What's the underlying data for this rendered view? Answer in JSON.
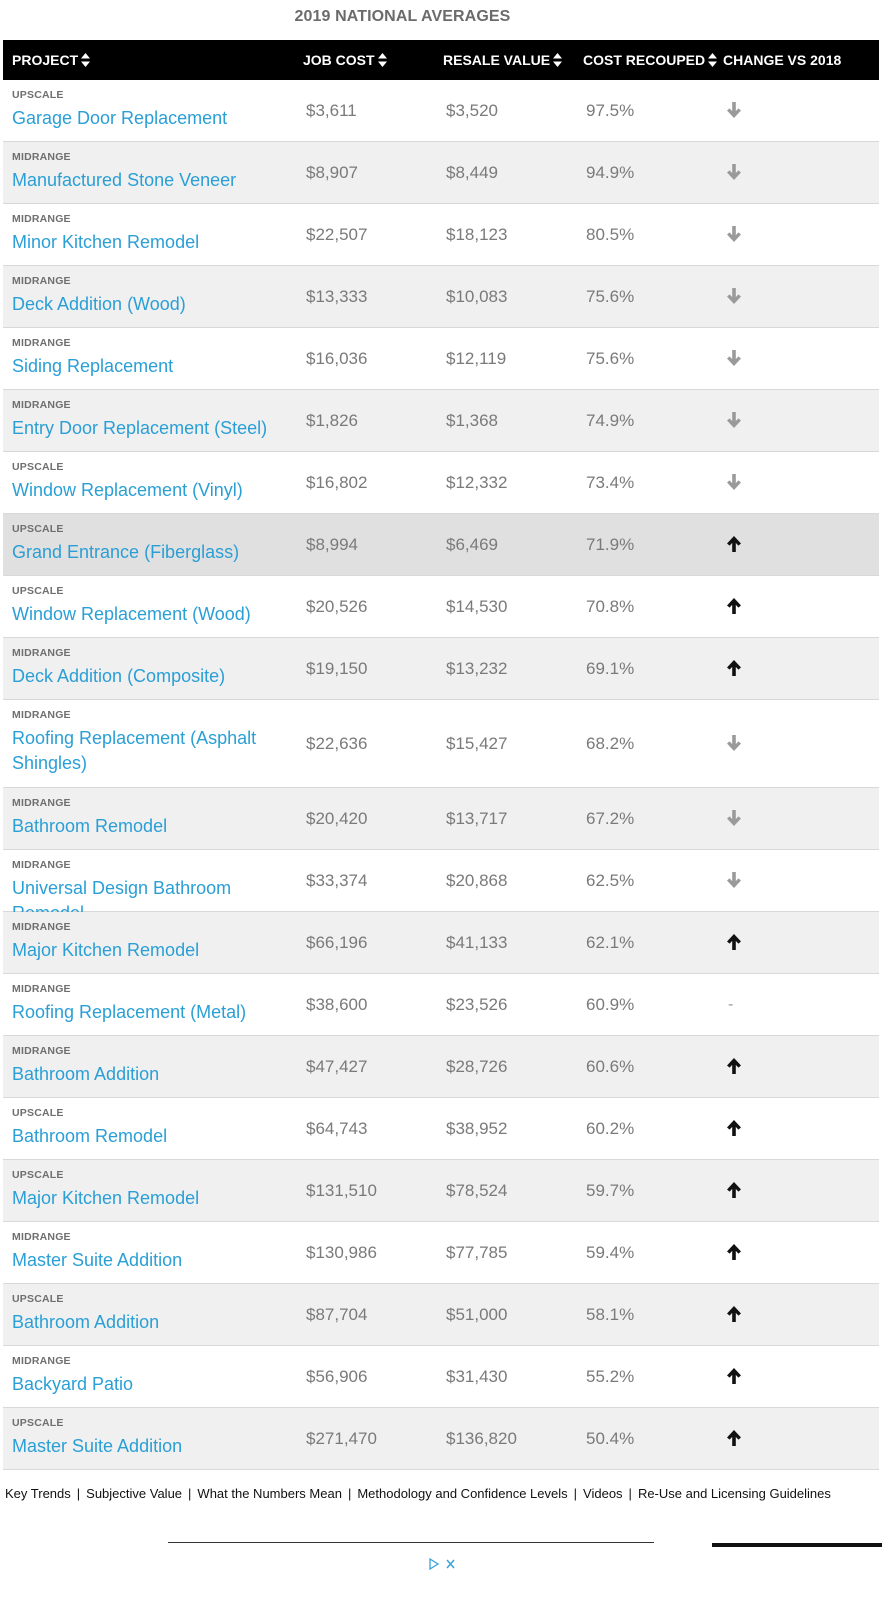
{
  "title": "2019 NATIONAL AVERAGES",
  "headers": {
    "project": "PROJECT",
    "job_cost": "JOB COST",
    "resale_value": "RESALE VALUE",
    "cost_recouped": "COST RECOUPED",
    "change": "CHANGE VS 2018"
  },
  "rows": [
    {
      "tier": "UPSCALE",
      "name": "Garage Door Replacement",
      "job_cost": "$3,611",
      "resale": "$3,520",
      "recouped": "97.5%",
      "change": "down"
    },
    {
      "tier": "MIDRANGE",
      "name": "Manufactured Stone Veneer",
      "job_cost": "$8,907",
      "resale": "$8,449",
      "recouped": "94.9%",
      "change": "down"
    },
    {
      "tier": "MIDRANGE",
      "name": "Minor Kitchen Remodel",
      "job_cost": "$22,507",
      "resale": "$18,123",
      "recouped": "80.5%",
      "change": "down"
    },
    {
      "tier": "MIDRANGE",
      "name": "Deck Addition (Wood)",
      "job_cost": "$13,333",
      "resale": "$10,083",
      "recouped": "75.6%",
      "change": "down"
    },
    {
      "tier": "MIDRANGE",
      "name": "Siding Replacement",
      "job_cost": "$16,036",
      "resale": "$12,119",
      "recouped": "75.6%",
      "change": "down"
    },
    {
      "tier": "MIDRANGE",
      "name": "Entry Door Replacement (Steel)",
      "job_cost": "$1,826",
      "resale": "$1,368",
      "recouped": "74.9%",
      "change": "down"
    },
    {
      "tier": "UPSCALE",
      "name": "Window Replacement (Vinyl)",
      "job_cost": "$16,802",
      "resale": "$12,332",
      "recouped": "73.4%",
      "change": "down"
    },
    {
      "tier": "UPSCALE",
      "name": "Grand Entrance (Fiberglass)",
      "job_cost": "$8,994",
      "resale": "$6,469",
      "recouped": "71.9%",
      "change": "up"
    },
    {
      "tier": "UPSCALE",
      "name": "Window Replacement (Wood)",
      "job_cost": "$20,526",
      "resale": "$14,530",
      "recouped": "70.8%",
      "change": "up"
    },
    {
      "tier": "MIDRANGE",
      "name": "Deck Addition (Composite)",
      "job_cost": "$19,150",
      "resale": "$13,232",
      "recouped": "69.1%",
      "change": "up"
    },
    {
      "tier": "MIDRANGE",
      "name": "Roofing Replacement (Asphalt Shingles)",
      "job_cost": "$22,636",
      "resale": "$15,427",
      "recouped": "68.2%",
      "change": "down"
    },
    {
      "tier": "MIDRANGE",
      "name": "Bathroom Remodel",
      "job_cost": "$20,420",
      "resale": "$13,717",
      "recouped": "67.2%",
      "change": "down"
    },
    {
      "tier": "MIDRANGE",
      "name": "Universal Design Bathroom Remodel",
      "job_cost": "$33,374",
      "resale": "$20,868",
      "recouped": "62.5%",
      "change": "down"
    },
    {
      "tier": "MIDRANGE",
      "name": "Major Kitchen Remodel",
      "job_cost": "$66,196",
      "resale": "$41,133",
      "recouped": "62.1%",
      "change": "up"
    },
    {
      "tier": "MIDRANGE",
      "name": "Roofing Replacement (Metal)",
      "job_cost": "$38,600",
      "resale": "$23,526",
      "recouped": "60.9%",
      "change": "-"
    },
    {
      "tier": "MIDRANGE",
      "name": "Bathroom Addition",
      "job_cost": "$47,427",
      "resale": "$28,726",
      "recouped": "60.6%",
      "change": "up"
    },
    {
      "tier": "UPSCALE",
      "name": "Bathroom Remodel",
      "job_cost": "$64,743",
      "resale": "$38,952",
      "recouped": "60.2%",
      "change": "up"
    },
    {
      "tier": "UPSCALE",
      "name": "Major Kitchen Remodel",
      "job_cost": "$131,510",
      "resale": "$78,524",
      "recouped": "59.7%",
      "change": "up"
    },
    {
      "tier": "MIDRANGE",
      "name": "Master Suite Addition",
      "job_cost": "$130,986",
      "resale": "$77,785",
      "recouped": "59.4%",
      "change": "up"
    },
    {
      "tier": "UPSCALE",
      "name": "Bathroom Addition",
      "job_cost": "$87,704",
      "resale": "$51,000",
      "recouped": "58.1%",
      "change": "up"
    },
    {
      "tier": "MIDRANGE",
      "name": "Backyard Patio",
      "job_cost": "$56,906",
      "resale": "$31,430",
      "recouped": "55.2%",
      "change": "up"
    },
    {
      "tier": "UPSCALE",
      "name": "Master Suite Addition",
      "job_cost": "$271,470",
      "resale": "$136,820",
      "recouped": "50.4%",
      "change": "up"
    }
  ],
  "footer_links": [
    "Key Trends",
    "Subjective Value",
    "What the Numbers Mean",
    "Methodology and Confidence Levels",
    "Videos",
    "Re-Use and Licensing Guidelines"
  ],
  "colors": {
    "link": "#2a9fd6",
    "header_bg": "#000000",
    "up_arrow": "#111111",
    "down_arrow": "#9a9a9a"
  }
}
